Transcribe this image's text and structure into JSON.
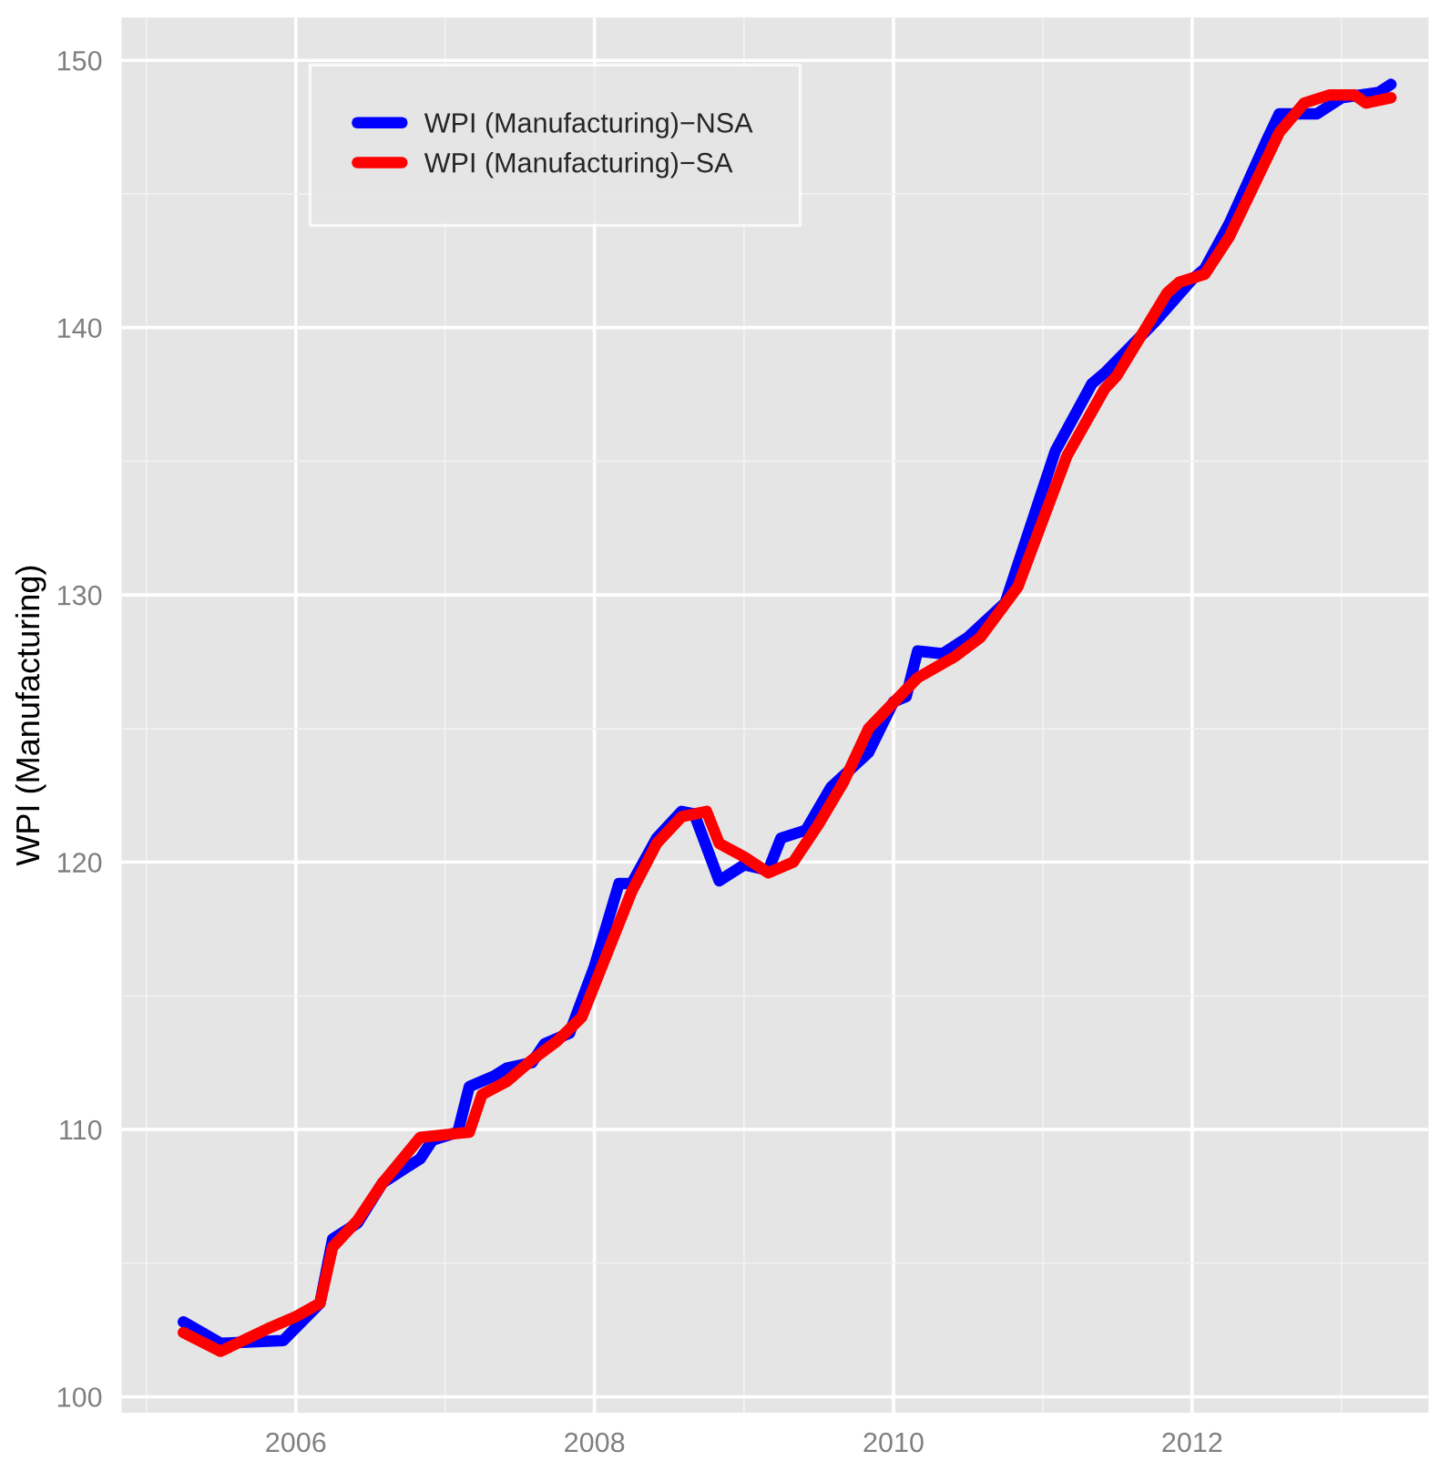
{
  "chart_data": {
    "type": "line",
    "ylabel": "WPI (Manufacturing)",
    "xlim": [
      "2004-11",
      "2013-08"
    ],
    "ylim": [
      99.4,
      151.6
    ],
    "xticks": [
      {
        "value": "2006-01",
        "label": "2006"
      },
      {
        "value": "2008-01",
        "label": "2008"
      },
      {
        "value": "2010-01",
        "label": "2010"
      },
      {
        "value": "2012-01",
        "label": "2012"
      }
    ],
    "yticks": [
      100,
      110,
      120,
      130,
      140,
      150
    ],
    "grid": true,
    "legend": "top left",
    "line_style": "solid",
    "series": [
      {
        "name": "WPI (Manufacturing)−NSA",
        "color": "#0000ff",
        "x": [
          "2005-04",
          "2005-07",
          "2005-12",
          "2006-03",
          "2006-04",
          "2006-06",
          "2006-08",
          "2006-10",
          "2006-11",
          "2006-12",
          "2007-02",
          "2007-03",
          "2007-05",
          "2007-06",
          "2007-08",
          "2007-09",
          "2007-11",
          "2008-01",
          "2008-03",
          "2008-04",
          "2008-06",
          "2008-08",
          "2008-09",
          "2008-11",
          "2009-01",
          "2009-03",
          "2009-04",
          "2009-06",
          "2009-08",
          "2009-11",
          "2010-01",
          "2010-02",
          "2010-03",
          "2010-05",
          "2010-07",
          "2010-10",
          "2011-02",
          "2011-05",
          "2011-06",
          "2011-10",
          "2012-01",
          "2012-02",
          "2012-04",
          "2012-07",
          "2012-08",
          "2012-11",
          "2013-01",
          "2013-04",
          "2013-05"
        ],
        "values": [
          102.8,
          102.0,
          102.1,
          103.5,
          105.9,
          106.5,
          108.0,
          108.6,
          108.9,
          109.6,
          109.9,
          111.6,
          112.0,
          112.3,
          112.5,
          113.2,
          113.6,
          116.1,
          119.2,
          119.2,
          120.9,
          121.9,
          121.8,
          119.3,
          119.9,
          119.7,
          120.9,
          121.2,
          122.8,
          124.1,
          126.0,
          126.2,
          127.9,
          127.8,
          128.4,
          129.7,
          135.4,
          137.9,
          138.3,
          140.2,
          141.8,
          142.2,
          143.9,
          147.0,
          148.0,
          148.0,
          148.6,
          148.8,
          149.1
        ]
      },
      {
        "name": "WPI (Manufacturing)−SA",
        "color": "#ff0000",
        "x": [
          "2005-04",
          "2005-07",
          "2005-11",
          "2006-01",
          "2006-03",
          "2006-04",
          "2006-06",
          "2006-08",
          "2006-11",
          "2007-03",
          "2007-04",
          "2007-06",
          "2007-08",
          "2007-10",
          "2007-12",
          "2008-04",
          "2008-06",
          "2008-08",
          "2008-10",
          "2008-11",
          "2009-01",
          "2009-03",
          "2009-05",
          "2009-07",
          "2009-09",
          "2009-11",
          "2010-03",
          "2010-06",
          "2010-08",
          "2010-11",
          "2011-03",
          "2011-06",
          "2011-07",
          "2011-11",
          "2011-12",
          "2012-02",
          "2012-04",
          "2012-08",
          "2012-10",
          "2012-12",
          "2013-02",
          "2013-03",
          "2013-05"
        ],
        "values": [
          102.4,
          101.7,
          102.6,
          103.0,
          103.5,
          105.6,
          106.6,
          108.0,
          109.7,
          109.9,
          111.3,
          111.8,
          112.6,
          113.3,
          114.2,
          118.9,
          120.7,
          121.7,
          121.9,
          120.7,
          120.2,
          119.6,
          120.0,
          121.4,
          123.0,
          125.0,
          126.9,
          127.7,
          128.4,
          130.3,
          135.2,
          137.7,
          138.2,
          141.3,
          141.7,
          142.0,
          143.4,
          147.3,
          148.4,
          148.7,
          148.7,
          148.4,
          148.6
        ]
      }
    ]
  }
}
